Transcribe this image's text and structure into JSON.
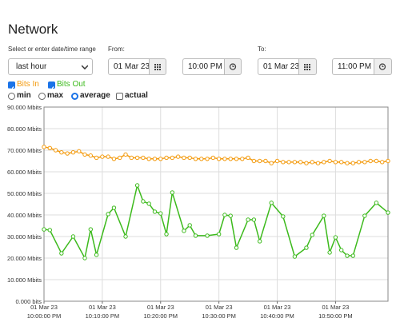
{
  "header": {
    "title": "Network"
  },
  "form": {
    "range_label": "Select or enter date/time range",
    "range_value": "last hour",
    "from_label": "From:",
    "from_date": "01 Mar 23",
    "from_time": "10:00 PM",
    "to_label": "To:",
    "to_date": "01 Mar 23",
    "to_time": "11:00 PM",
    "options": [
      "min",
      "max",
      "average",
      "actual"
    ]
  },
  "chart_data": {
    "type": "line",
    "series": [
      {
        "name": "Bits In",
        "color": "#f39a0d",
        "x": [
          0,
          1,
          2,
          3,
          4,
          5,
          6,
          7,
          8,
          9,
          10,
          11,
          12,
          13,
          14,
          15,
          16,
          17,
          18,
          19,
          20,
          21,
          22,
          23,
          24,
          25,
          26,
          27,
          28,
          29,
          30,
          31,
          32,
          33,
          34,
          35,
          36,
          37,
          38,
          39,
          40,
          41,
          42,
          43,
          44,
          45,
          46,
          47,
          48,
          49,
          50,
          51,
          52,
          53,
          54,
          55,
          56,
          57,
          58,
          59
        ],
        "values": [
          71.5,
          71,
          70,
          69,
          68.5,
          69,
          69.5,
          68,
          67.5,
          66.5,
          67,
          67,
          66,
          66.5,
          68,
          66.5,
          66.5,
          66.5,
          66,
          66,
          66,
          66.5,
          66.5,
          67,
          66.5,
          66.5,
          66,
          66,
          66,
          66.5,
          66,
          66,
          66,
          66,
          66,
          66.5,
          65,
          65,
          65,
          64,
          65,
          64.5,
          64.5,
          64.5,
          64.5,
          64,
          64.5,
          64,
          64.5,
          65,
          64.5,
          64.5,
          64,
          64,
          64.5,
          64.5,
          65,
          65,
          64.5,
          65
        ]
      },
      {
        "name": "Bits Out",
        "color": "#3cba1c",
        "x": [
          0,
          1,
          3,
          5,
          7,
          8,
          9,
          11,
          12,
          14,
          16,
          17,
          18,
          19,
          20,
          21,
          22,
          24,
          25,
          26,
          28,
          30,
          31,
          32,
          33,
          35,
          36,
          37,
          39,
          41,
          43,
          45,
          46,
          48,
          49,
          50,
          51,
          52,
          53,
          55,
          57,
          59
        ],
        "values": [
          33.3,
          33,
          22.2,
          30,
          20,
          33.3,
          21.5,
          40.4,
          43.3,
          30,
          53.7,
          46.3,
          45.2,
          41.5,
          40.7,
          31.1,
          50.4,
          32.6,
          35.2,
          30.4,
          30.4,
          31.1,
          40,
          39.6,
          24.8,
          37.8,
          37.8,
          27.8,
          45.6,
          39.3,
          20.7,
          24.8,
          30.7,
          39.6,
          22.6,
          29.6,
          23.7,
          21.1,
          21.1,
          39.6,
          45.6,
          41.1
        ]
      }
    ],
    "xlim": [
      0,
      59
    ],
    "xticks": [
      {
        "value": 0,
        "label": [
          "01 Mar 23",
          "10:00:00 PM"
        ]
      },
      {
        "value": 10,
        "label": [
          "01 Mar 23",
          "10:10:00 PM"
        ]
      },
      {
        "value": 20,
        "label": [
          "01 Mar 23",
          "10:20:00 PM"
        ]
      },
      {
        "value": 30,
        "label": [
          "01 Mar 23",
          "10:30:00 PM"
        ]
      },
      {
        "value": 40,
        "label": [
          "01 Mar 23",
          "10:40:00 PM"
        ]
      },
      {
        "value": 50,
        "label": [
          "01 Mar 23",
          "10:50:00 PM"
        ]
      }
    ],
    "ylim": [
      0,
      90
    ],
    "yticks": [
      {
        "value": 0,
        "label": "0.000 bits"
      },
      {
        "value": 10,
        "label": "10.000 Mbits"
      },
      {
        "value": 20,
        "label": "20.000 Mbits"
      },
      {
        "value": 30,
        "label": "30.000 Mbits"
      },
      {
        "value": 40,
        "label": "40.000 Mbits"
      },
      {
        "value": 50,
        "label": "50.000 Mbits"
      },
      {
        "value": 60,
        "label": "60.000 Mbits"
      },
      {
        "value": 70,
        "label": "70.000 Mbits"
      },
      {
        "value": 80,
        "label": "80.000 Mbits"
      },
      {
        "value": 90,
        "label": "90.000 Mbits"
      }
    ],
    "grid": true
  }
}
